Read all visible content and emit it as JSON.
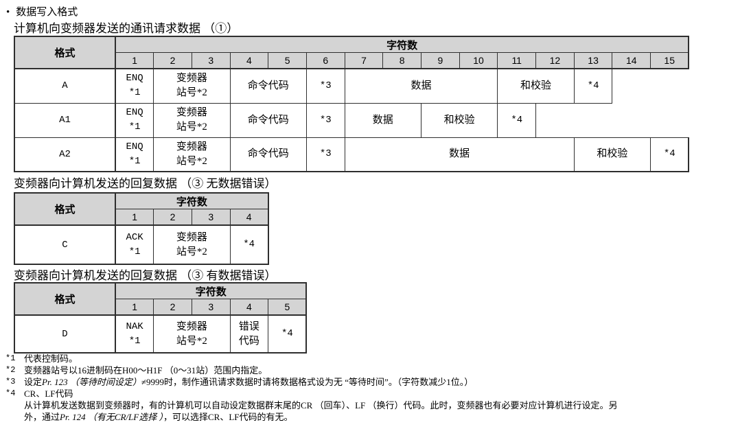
{
  "title": {
    "marker": "•",
    "text": "数据写入格式"
  },
  "colors": {
    "header_bg": "#d4d4d4",
    "border": "#2e2e2e",
    "text": "#000000"
  },
  "tables": [
    {
      "caption": "计算机向变频器发送的通讯请求数据 （①）",
      "format_label": "格式",
      "chars_label": "字符数",
      "columns": [
        "1",
        "2",
        "3",
        "4",
        "5",
        "6",
        "7",
        "8",
        "9",
        "10",
        "11",
        "12",
        "13",
        "14",
        "15"
      ],
      "rows": [
        {
          "format": "A",
          "cells": [
            {
              "span": 1,
              "lines": [
                "ENQ",
                "*1"
              ]
            },
            {
              "span": 2,
              "lines": [
                "变频器",
                "站号*2"
              ]
            },
            {
              "span": 2,
              "lines": [
                "命令代码"
              ]
            },
            {
              "span": 1,
              "lines": [
                "*3"
              ]
            },
            {
              "span": 4,
              "lines": [
                "数据"
              ]
            },
            {
              "span": 2,
              "lines": [
                "和校验"
              ]
            },
            {
              "span": 1,
              "lines": [
                "*4"
              ]
            }
          ]
        },
        {
          "format": "A1",
          "cells": [
            {
              "span": 1,
              "lines": [
                "ENQ",
                "*1"
              ]
            },
            {
              "span": 2,
              "lines": [
                "变频器",
                "站号*2"
              ]
            },
            {
              "span": 2,
              "lines": [
                "命令代码"
              ]
            },
            {
              "span": 1,
              "lines": [
                "*3"
              ]
            },
            {
              "span": 2,
              "lines": [
                "数据"
              ]
            },
            {
              "span": 2,
              "lines": [
                "和校验"
              ]
            },
            {
              "span": 1,
              "lines": [
                "*4"
              ]
            }
          ]
        },
        {
          "format": "A2",
          "cells": [
            {
              "span": 1,
              "lines": [
                "ENQ",
                "*1"
              ]
            },
            {
              "span": 2,
              "lines": [
                "变频器",
                "站号*2"
              ]
            },
            {
              "span": 2,
              "lines": [
                "命令代码"
              ]
            },
            {
              "span": 1,
              "lines": [
                "*3"
              ]
            },
            {
              "span": 6,
              "lines": [
                "数据"
              ]
            },
            {
              "span": 2,
              "lines": [
                "和校验"
              ]
            },
            {
              "span": 1,
              "lines": [
                "*4"
              ]
            }
          ]
        }
      ]
    },
    {
      "caption": "变频器向计算机发送的回复数据 （③ 无数据错误）",
      "format_label": "格式",
      "chars_label": "字符数",
      "columns": [
        "1",
        "2",
        "3",
        "4"
      ],
      "rows": [
        {
          "format": "C",
          "cells": [
            {
              "span": 1,
              "lines": [
                "ACK",
                "*1"
              ]
            },
            {
              "span": 2,
              "lines": [
                "变频器",
                "站号*2"
              ]
            },
            {
              "span": 1,
              "lines": [
                "*4"
              ]
            }
          ]
        }
      ]
    },
    {
      "caption": "变频器向计算机发送的回复数据 （③ 有数据错误）",
      "format_label": "格式",
      "chars_label": "字符数",
      "columns": [
        "1",
        "2",
        "3",
        "4",
        "5"
      ],
      "rows": [
        {
          "format": "D",
          "cells": [
            {
              "span": 1,
              "lines": [
                "NAK",
                "*1"
              ]
            },
            {
              "span": 2,
              "lines": [
                "变频器",
                "站号*2"
              ]
            },
            {
              "span": 1,
              "lines": [
                "错误",
                "代码"
              ]
            },
            {
              "span": 1,
              "lines": [
                "*4"
              ]
            }
          ]
        }
      ]
    }
  ],
  "footnotes": [
    {
      "marker": "*1",
      "lines": [
        [
          {
            "t": "代表控制码。"
          }
        ]
      ]
    },
    {
      "marker": "*2",
      "lines": [
        [
          {
            "t": "变频器站号以16进制码在H00～H1F （0～31站）范围内指定。"
          }
        ]
      ]
    },
    {
      "marker": "*3",
      "lines": [
        [
          {
            "t": "设定"
          },
          {
            "t": "Pr. 123 （等待时间设定）",
            "i": true
          },
          {
            "t": "≠9999时，制作通讯请求数据时请将数据格式设为无 “等待时间”。（字符数减少1位。）"
          }
        ]
      ]
    },
    {
      "marker": "*4",
      "lines": [
        [
          {
            "t": "CR、LF代码"
          }
        ],
        [
          {
            "t": "从计算机发送数据到变频器时，有的计算机可以自动设定数据群末尾的CR （回车）、LF （换行）代码。此时，变频器也有必要对应计算机进行设定。另"
          }
        ],
        [
          {
            "t": "外，通过"
          },
          {
            "t": "Pr. 124 （有无CR/LF选择 ）",
            "i": true
          },
          {
            "t": "，可以选择CR、LF代码的有无。"
          }
        ]
      ]
    }
  ]
}
